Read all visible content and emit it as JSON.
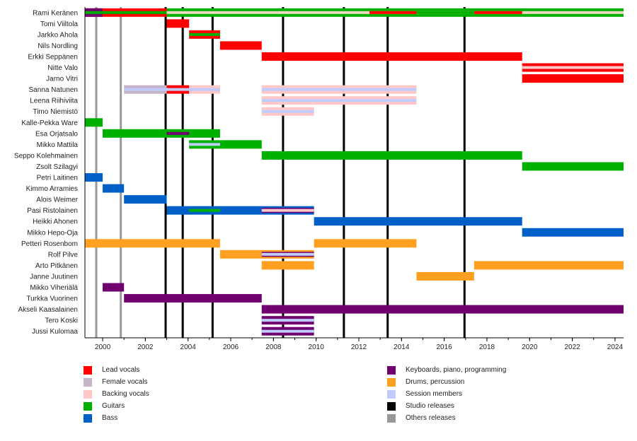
{
  "chart_data": {
    "type": "timeline",
    "title": "",
    "xlabel": "",
    "ylabel": "",
    "xlim": [
      1999.17,
      2024.4
    ],
    "x_ticks": [
      2000,
      2002,
      2004,
      2006,
      2008,
      2010,
      2012,
      2014,
      2016,
      2018,
      2020,
      2022,
      2024
    ],
    "x_minor_ticks_step": 1,
    "colors": {
      "lead": "#ff0000",
      "female": "#c8b4c8",
      "backing": "#ffc8c8",
      "guitars": "#00b000",
      "bass": "#0060c8",
      "keys": "#700070",
      "drums": "#ffa020",
      "session": "#c0ccff",
      "studio": "#000000",
      "other": "#999999",
      "beige": "#f0d8c0"
    },
    "members": [
      {
        "name": "Rami Keränen",
        "bars": [
          {
            "start": 1999.17,
            "end": 2003.0,
            "color": "lead"
          },
          {
            "start": 1999.17,
            "end": 2000.0,
            "color": "keys"
          },
          {
            "start": 1999.17,
            "end": 2003.0,
            "color": "guitars",
            "inner": true
          },
          {
            "start": 2003.0,
            "end": 2024.4,
            "color": "guitars"
          },
          {
            "start": 2003.0,
            "end": 2024.4,
            "color": "beige",
            "inner": true
          },
          {
            "start": 2012.5,
            "end": 2014.7,
            "color": "lead",
            "inner": true
          },
          {
            "start": 2014.7,
            "end": 2017.4,
            "color": "guitars",
            "inner": true
          },
          {
            "start": 2017.4,
            "end": 2019.65,
            "color": "lead",
            "inner": true
          }
        ]
      },
      {
        "name": "Tomi Viiltola",
        "bars": [
          {
            "start": 2003.0,
            "end": 2004.05,
            "color": "lead"
          }
        ]
      },
      {
        "name": "Jarkko Ahola",
        "bars": [
          {
            "start": 2004.05,
            "end": 2005.5,
            "color": "lead"
          },
          {
            "start": 2004.05,
            "end": 2005.5,
            "color": "guitars",
            "inner": true
          }
        ]
      },
      {
        "name": "Nils Nordling",
        "bars": [
          {
            "start": 2005.5,
            "end": 2007.45,
            "color": "lead"
          }
        ]
      },
      {
        "name": "Erkki Seppänen",
        "bars": [
          {
            "start": 2007.45,
            "end": 2019.65,
            "color": "lead"
          }
        ]
      },
      {
        "name": "Nitte Valo",
        "bars": [
          {
            "start": 2019.65,
            "end": 2024.4,
            "color": "lead"
          },
          {
            "start": 2019.65,
            "end": 2024.4,
            "color": "backing",
            "inner": true
          }
        ]
      },
      {
        "name": "Jarno Vitri",
        "bars": [
          {
            "start": 2019.65,
            "end": 2024.4,
            "color": "lead"
          }
        ]
      },
      {
        "name": "Sanna Natunen",
        "bars": [
          {
            "start": 2001.0,
            "end": 2003.0,
            "color": "female"
          },
          {
            "start": 2003.0,
            "end": 2004.05,
            "color": "lead"
          },
          {
            "start": 2004.05,
            "end": 2005.5,
            "color": "backing"
          },
          {
            "start": 2001.0,
            "end": 2005.5,
            "color": "session",
            "inner": true
          },
          {
            "start": 2007.45,
            "end": 2014.7,
            "color": "backing"
          },
          {
            "start": 2007.45,
            "end": 2014.7,
            "color": "session",
            "inner": true
          }
        ]
      },
      {
        "name": "Leena Riihiviita",
        "bars": [
          {
            "start": 2007.45,
            "end": 2014.7,
            "color": "backing"
          },
          {
            "start": 2007.45,
            "end": 2014.7,
            "color": "session",
            "inner": true
          }
        ]
      },
      {
        "name": "Timo Niemistö",
        "bars": [
          {
            "start": 2007.45,
            "end": 2009.9,
            "color": "backing"
          },
          {
            "start": 2007.45,
            "end": 2009.9,
            "color": "session",
            "inner": true
          }
        ]
      },
      {
        "name": "Kalle-Pekka Ware",
        "bars": [
          {
            "start": 1999.17,
            "end": 2000.0,
            "color": "guitars"
          }
        ]
      },
      {
        "name": "Esa Orjatsalo",
        "bars": [
          {
            "start": 2000.0,
            "end": 2005.5,
            "color": "guitars"
          },
          {
            "start": 2003.0,
            "end": 2004.05,
            "color": "keys",
            "inner": true
          }
        ]
      },
      {
        "name": "Mikko Mattila",
        "bars": [
          {
            "start": 2004.05,
            "end": 2007.45,
            "color": "guitars"
          },
          {
            "start": 2004.05,
            "end": 2005.5,
            "color": "session",
            "inner": true
          }
        ]
      },
      {
        "name": "Seppo Kolehmainen",
        "bars": [
          {
            "start": 2007.45,
            "end": 2019.65,
            "color": "guitars"
          }
        ]
      },
      {
        "name": "Zsolt Szilagyi",
        "bars": [
          {
            "start": 2019.65,
            "end": 2024.4,
            "color": "guitars"
          }
        ]
      },
      {
        "name": "Petri Laitinen",
        "bars": [
          {
            "start": 1999.17,
            "end": 2000.0,
            "color": "bass"
          }
        ]
      },
      {
        "name": "Kimmo Arramies",
        "bars": [
          {
            "start": 2000.0,
            "end": 2001.0,
            "color": "bass"
          }
        ]
      },
      {
        "name": "Alois Weimer",
        "bars": [
          {
            "start": 2001.0,
            "end": 2003.0,
            "color": "bass"
          }
        ]
      },
      {
        "name": "Pasi Ristolainen",
        "bars": [
          {
            "start": 2003.0,
            "end": 2009.9,
            "color": "bass"
          },
          {
            "start": 2004.05,
            "end": 2005.5,
            "color": "guitars",
            "inner": true
          },
          {
            "start": 2007.45,
            "end": 2009.9,
            "color": "keys",
            "inner": true,
            "wide": true
          },
          {
            "start": 2007.45,
            "end": 2009.9,
            "color": "backing",
            "inner": true
          }
        ]
      },
      {
        "name": "Heikki Ahonen",
        "bars": [
          {
            "start": 2009.9,
            "end": 2019.65,
            "color": "bass"
          }
        ]
      },
      {
        "name": "Mikko Hepo-Oja",
        "bars": [
          {
            "start": 2019.65,
            "end": 2024.4,
            "color": "bass"
          }
        ]
      },
      {
        "name": "Petteri Rosenbom",
        "bars": [
          {
            "start": 1999.17,
            "end": 2005.5,
            "color": "drums"
          },
          {
            "start": 2009.9,
            "end": 2014.7,
            "color": "drums"
          }
        ]
      },
      {
        "name": "Rolf Pilve",
        "bars": [
          {
            "start": 2005.5,
            "end": 2009.9,
            "color": "drums"
          },
          {
            "start": 2007.45,
            "end": 2009.9,
            "color": "keys",
            "inner": true,
            "wide": true
          },
          {
            "start": 2007.45,
            "end": 2009.9,
            "color": "session",
            "inner": true
          }
        ]
      },
      {
        "name": "Arto Pitkänen",
        "bars": [
          {
            "start": 2007.45,
            "end": 2009.9,
            "color": "drums"
          },
          {
            "start": 2017.4,
            "end": 2024.4,
            "color": "drums"
          }
        ]
      },
      {
        "name": "Janne Juutinen",
        "bars": [
          {
            "start": 2014.7,
            "end": 2017.4,
            "color": "drums"
          }
        ]
      },
      {
        "name": "Mikko Viheriälä",
        "bars": [
          {
            "start": 2000.0,
            "end": 2001.0,
            "color": "keys"
          }
        ]
      },
      {
        "name": "Turkka Vuorinen",
        "bars": [
          {
            "start": 2001.0,
            "end": 2007.45,
            "color": "keys"
          }
        ]
      },
      {
        "name": "Akseli Kaasalainen",
        "bars": [
          {
            "start": 2007.45,
            "end": 2024.4,
            "color": "keys"
          }
        ]
      },
      {
        "name": "Tero Koski",
        "bars": [
          {
            "start": 2007.45,
            "end": 2009.9,
            "color": "keys"
          },
          {
            "start": 2007.45,
            "end": 2009.9,
            "color": "session",
            "inner": true
          }
        ]
      },
      {
        "name": "Jussi Kulomaa",
        "bars": [
          {
            "start": 2007.45,
            "end": 2009.9,
            "color": "keys"
          },
          {
            "start": 2007.45,
            "end": 2009.9,
            "color": "session",
            "inner": true
          }
        ]
      }
    ],
    "studio_releases": [
      2002.95,
      2003.75,
      2005.15,
      2008.45,
      2011.3,
      2013.35,
      2016.95
    ],
    "other_releases": [
      1999.7,
      2000.85
    ],
    "legend": [
      {
        "label": "Lead vocals",
        "color": "lead",
        "column": 0
      },
      {
        "label": "Female vocals",
        "color": "female",
        "column": 0
      },
      {
        "label": "Backing vocals",
        "color": "backing",
        "column": 0
      },
      {
        "label": "Guitars",
        "color": "guitars",
        "column": 0
      },
      {
        "label": "Bass",
        "color": "bass",
        "column": 0
      },
      {
        "label": "Keyboards, piano, programming",
        "color": "keys",
        "column": 1
      },
      {
        "label": "Drums, percussion",
        "color": "drums",
        "column": 1
      },
      {
        "label": "Session members",
        "color": "session",
        "column": 1
      },
      {
        "label": "Studio releases",
        "color": "studio",
        "column": 1
      },
      {
        "label": "Others releases",
        "color": "other",
        "column": 1
      }
    ],
    "legend_placement": "bottom"
  }
}
